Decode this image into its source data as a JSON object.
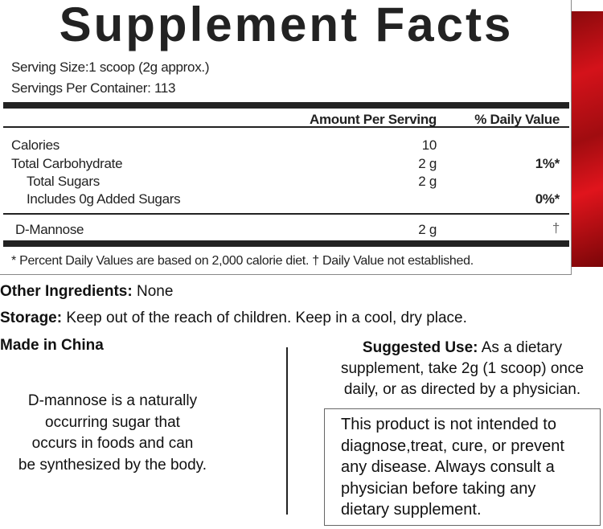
{
  "facts": {
    "title": "Supplement Facts",
    "serving_size": "Serving Size:1 scoop (2g approx.)",
    "servings_per_container": "Servings Per Container: 113",
    "header_amount": "Amount Per Serving",
    "header_dv": "% Daily Value",
    "rows": [
      {
        "name": "Calories",
        "amount": "10",
        "dv": ""
      },
      {
        "name": "Total Carbohydrate",
        "amount": "2 g",
        "dv": "1%*"
      },
      {
        "name": "Total Sugars",
        "amount": "2 g",
        "dv": ""
      },
      {
        "name": "Includes 0g Added Sugars",
        "amount": "",
        "dv": "0%*"
      },
      {
        "name": "D-Mannose",
        "amount": "2 g",
        "dv": "†"
      }
    ],
    "footnote": "* Percent Daily Values are based on 2,000 calorie diet. † Daily Value not established."
  },
  "accent_color": "#c8101a",
  "other_ingredients": {
    "label": "Other Ingredients:",
    "value": "None"
  },
  "storage": {
    "label": "Storage:",
    "value": "Keep out of the reach of children. Keep in a cool, dry place."
  },
  "made_in": "Made in China",
  "description": [
    "D-mannose is a naturally",
    "occurring sugar that",
    "occurs in foods and can",
    "be synthesized by the body."
  ],
  "suggested_use": {
    "label": "Suggested Use:",
    "lines": [
      "As a dietary",
      "supplement, take 2g (1 scoop) once",
      "daily, or as directed by a physician."
    ]
  },
  "disclaimer": [
    "This product is not intended to",
    "diagnose,treat, cure, or prevent",
    "any disease. Always consult a",
    "physician before taking any",
    "dietary supplement."
  ]
}
